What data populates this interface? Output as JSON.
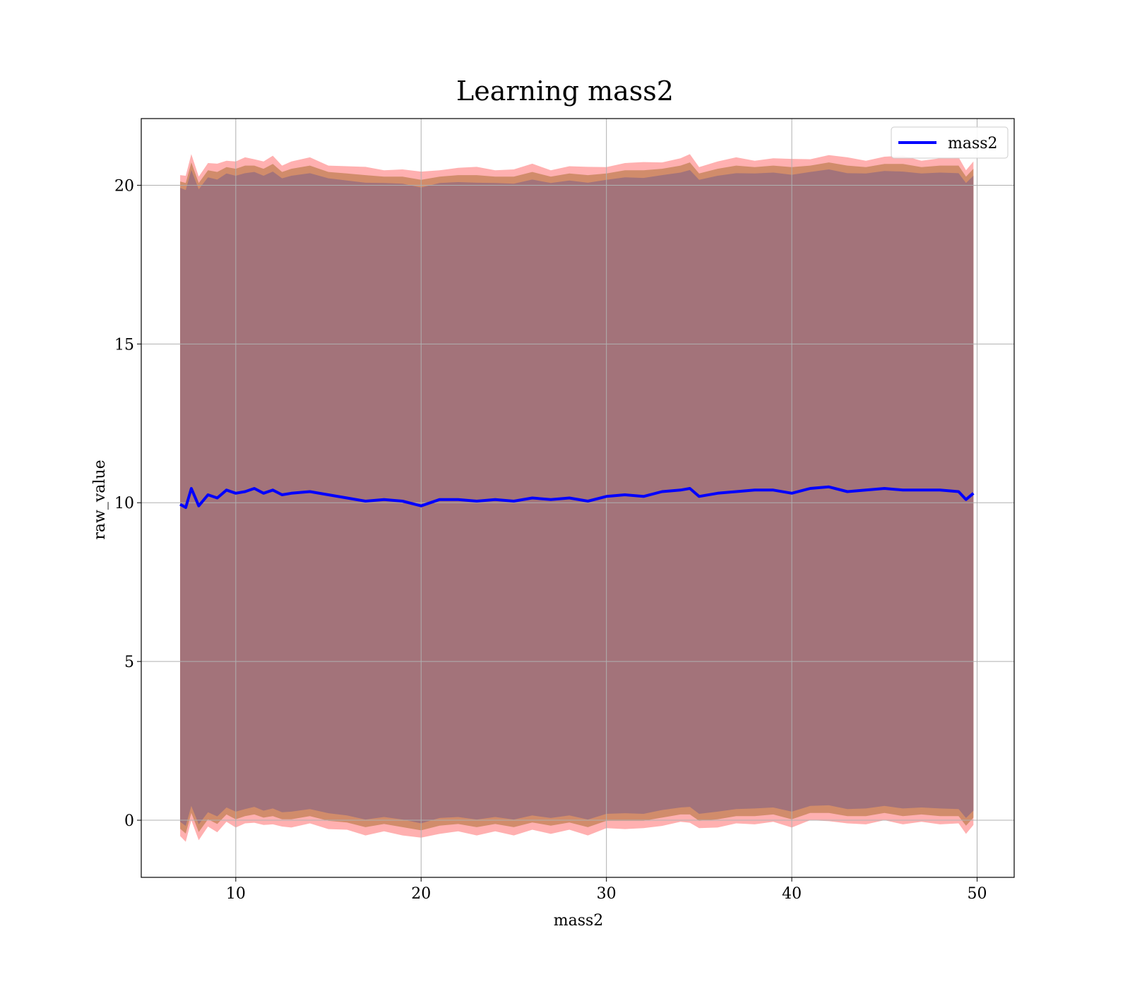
{
  "chart_data": {
    "type": "area",
    "title": "Learning mass2",
    "xlabel": "mass2",
    "ylabel": "raw_value",
    "xlim": [
      4.9,
      52
    ],
    "ylim": [
      -1.8,
      22.1
    ],
    "xticks": [
      10,
      20,
      30,
      40,
      50
    ],
    "yticks": [
      0,
      5,
      10,
      15,
      20
    ],
    "grid": true,
    "legend": {
      "placement": "top-right",
      "entries": [
        "mass2"
      ]
    },
    "colors": {
      "line": "#0000ff",
      "band_outer": "#ff6f6f",
      "band_middle": "#c9865f",
      "band_inner": "#a3737a"
    },
    "x": [
      7.0,
      7.3,
      7.6,
      8.0,
      8.5,
      9.0,
      9.5,
      10.0,
      10.5,
      11.0,
      11.5,
      12.0,
      12.5,
      13.0,
      14.0,
      15.0,
      16.0,
      17.0,
      18.0,
      19.0,
      20.0,
      21.0,
      22.0,
      23.0,
      24.0,
      25.0,
      26.0,
      27.0,
      28.0,
      29.0,
      30.0,
      31.0,
      32.0,
      33.0,
      34.0,
      34.5,
      35.0,
      36.0,
      37.0,
      38.0,
      39.0,
      40.0,
      41.0,
      42.0,
      43.0,
      44.0,
      45.0,
      46.0,
      47.0,
      48.0,
      49.0,
      49.4,
      49.8
    ],
    "series": [
      {
        "name": "mass2",
        "values": [
          9.95,
          9.85,
          10.45,
          9.9,
          10.25,
          10.15,
          10.4,
          10.3,
          10.35,
          10.45,
          10.3,
          10.4,
          10.25,
          10.3,
          10.35,
          10.25,
          10.15,
          10.05,
          10.1,
          10.05,
          9.9,
          10.1,
          10.1,
          10.05,
          10.1,
          10.05,
          10.15,
          10.1,
          10.15,
          10.05,
          10.2,
          10.25,
          10.2,
          10.35,
          10.4,
          10.45,
          10.2,
          10.3,
          10.35,
          10.4,
          10.4,
          10.3,
          10.45,
          10.5,
          10.35,
          10.4,
          10.45,
          10.4,
          10.4,
          10.4,
          10.35,
          10.1,
          10.3
        ]
      }
    ]
  }
}
